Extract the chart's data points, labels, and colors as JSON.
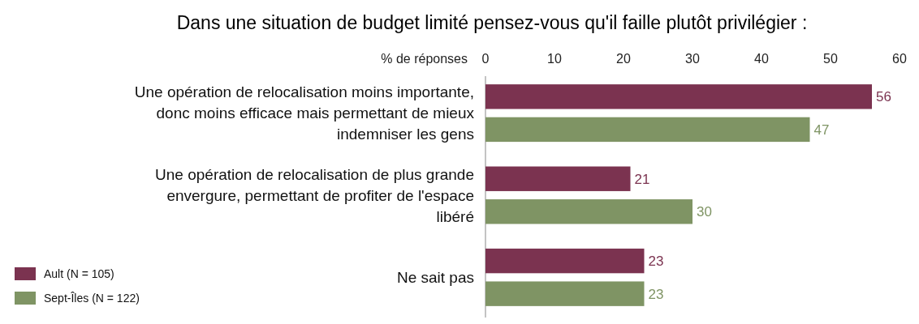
{
  "chart_data": {
    "type": "bar",
    "orientation": "horizontal",
    "title": "Dans une situation de budget limité pensez-vous qu'il faille plutôt privilégier :",
    "xlabel": "% de réponses",
    "categories": [
      "Une opération de relocalisation moins importante, donc moins efficace mais permettant de mieux indemniser les gens",
      "Une opération de relocalisation de plus grande envergure, permettant de profiter de l'espace libéré",
      "Ne sait pas"
    ],
    "series": [
      {
        "name": "Ault (N = 105)",
        "color": "#7b3350",
        "values": [
          56,
          21,
          23
        ]
      },
      {
        "name": "Sept-Îles (N = 122)",
        "color": "#7f9464",
        "values": [
          47,
          30,
          23
        ]
      }
    ],
    "xlim": [
      0,
      60
    ],
    "xticks": [
      0,
      10,
      20,
      30,
      40,
      50,
      60
    ],
    "data_labels": true,
    "legend": "bottom left",
    "grid": false
  }
}
